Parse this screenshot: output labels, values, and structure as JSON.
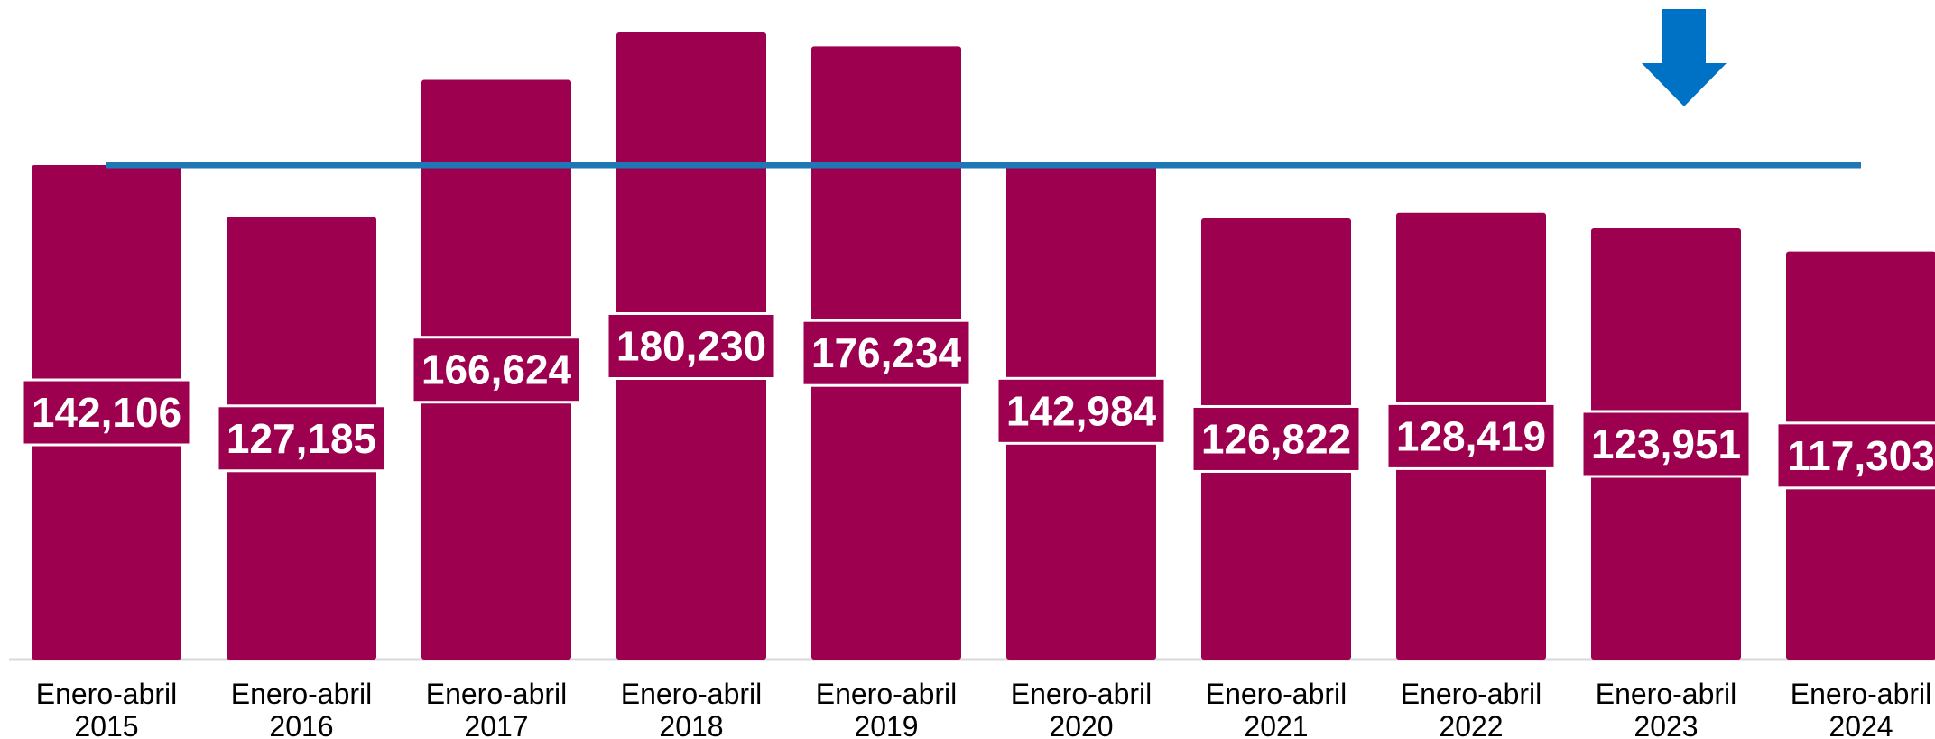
{
  "chart_data": {
    "type": "bar",
    "title": "",
    "xlabel": "",
    "ylabel": "",
    "categories": [
      [
        "Enero-abril",
        "2015"
      ],
      [
        "Enero-abril",
        "2016"
      ],
      [
        "Enero-abril",
        "2017"
      ],
      [
        "Enero-abril",
        "2018"
      ],
      [
        "Enero-abril",
        "2019"
      ],
      [
        "Enero-abril",
        "2020"
      ],
      [
        "Enero-abril",
        "2021"
      ],
      [
        "Enero-abril",
        "2022"
      ],
      [
        "Enero-abril",
        "2023"
      ],
      [
        "Enero-abril",
        "2024"
      ]
    ],
    "values": [
      142106,
      127185,
      166624,
      180230,
      176234,
      142984,
      126822,
      128419,
      123951,
      117303
    ],
    "value_labels": [
      "142,106",
      "127,185",
      "166,624",
      "180,230",
      "176,234",
      "142,984",
      "126,822",
      "128,419",
      "123,951",
      "117,303"
    ],
    "ylim": [
      0,
      180230
    ],
    "grid": false,
    "legend": "none",
    "reference_line": {
      "value": 142106
    },
    "annotation": {
      "type": "down-arrow",
      "category_index": 8
    },
    "colors": {
      "bar": "#9e0050",
      "reference_line": "#1f77b4",
      "arrow": "#0072c6",
      "axis": "#d9d9d9"
    }
  }
}
